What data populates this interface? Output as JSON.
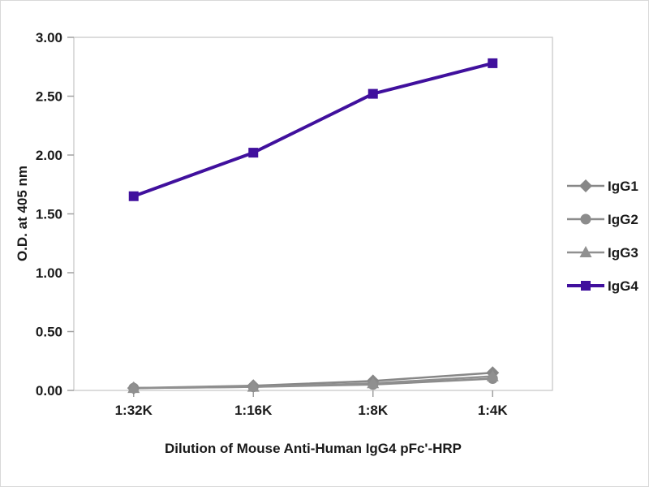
{
  "figure": {
    "background": "#ffffff",
    "frame_color": "#d9d9d9",
    "plot_border_color": "#c4c4c4",
    "tick_color": "#a0a0a0",
    "text_color": "#1a1a1a"
  },
  "chart_data": {
    "type": "line",
    "title": "",
    "xlabel": "Dilution of Mouse Anti-Human IgG4 pFc'-HRP",
    "ylabel": "O.D. at 405 nm",
    "categories": [
      "1:32K",
      "1:16K",
      "1:8K",
      "1:4K"
    ],
    "y_ticks": [
      "0.00",
      "0.50",
      "1.00",
      "1.50",
      "2.00",
      "2.50",
      "3.00"
    ],
    "ylim": [
      0,
      3
    ],
    "grid": false,
    "legend_position": "right",
    "series": [
      {
        "name": "IgG1",
        "marker": "diamond",
        "color": "#878787",
        "line_width": 2.5,
        "values": [
          0.02,
          0.04,
          0.08,
          0.15
        ]
      },
      {
        "name": "IgG2",
        "marker": "circle",
        "color": "#8c8c8c",
        "line_width": 2.5,
        "values": [
          0.02,
          0.03,
          0.05,
          0.1
        ]
      },
      {
        "name": "IgG3",
        "marker": "triangle",
        "color": "#909090",
        "line_width": 2.5,
        "values": [
          0.02,
          0.03,
          0.06,
          0.12
        ]
      },
      {
        "name": "IgG4",
        "marker": "square",
        "color": "#40109d",
        "line_width": 4,
        "values": [
          1.65,
          2.02,
          2.52,
          2.78
        ]
      }
    ]
  }
}
